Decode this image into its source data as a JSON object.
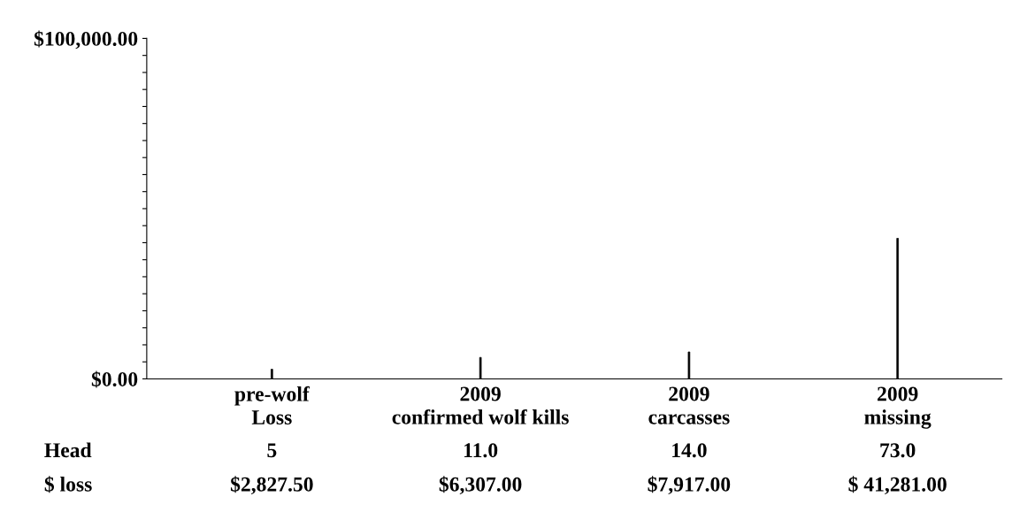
{
  "chart_data": {
    "type": "bar",
    "categories": [
      "pre-wolf\nLoss",
      "2009\nconfirmed wolf kills",
      "2009\ncarcasses",
      "2009\nmissing"
    ],
    "series": [
      {
        "name": "$ loss",
        "color": "#000000",
        "values": [
          2827.5,
          6307,
          7917,
          41281
        ],
        "value_labels": [
          "$2,827.50",
          "$6,307.00",
          "$7,917.00",
          "$ 41,281.00"
        ]
      }
    ],
    "annotations": [
      "Head",
      "5",
      "11.0",
      "14.0",
      "73.0"
    ],
    "ylim": [
      0,
      100000
    ],
    "yticks": [
      {
        "value": 0,
        "label": "$0.00"
      },
      {
        "value": 5000,
        "label": null
      },
      {
        "value": 10000,
        "label": null
      },
      {
        "value": 15000,
        "label": null
      },
      {
        "value": 20000,
        "label": null
      },
      {
        "value": 25000,
        "label": null
      },
      {
        "value": 30000,
        "label": null
      },
      {
        "value": 35000,
        "label": null
      },
      {
        "value": 40000,
        "label": null
      },
      {
        "value": 45000,
        "label": null
      },
      {
        "value": 50000,
        "label": null
      },
      {
        "value": 55000,
        "label": null
      },
      {
        "value": 60000,
        "label": null
      },
      {
        "value": 65000,
        "label": null
      },
      {
        "value": 70000,
        "label": null
      },
      {
        "value": 75000,
        "label": null
      },
      {
        "value": 80000,
        "label": null
      },
      {
        "value": 85000,
        "label": null
      },
      {
        "value": 90000,
        "label": null
      },
      {
        "value": 95000,
        "label": null
      },
      {
        "value": 100000,
        "label": "$100,000.00"
      }
    ],
    "grid": false,
    "legend": false
  }
}
